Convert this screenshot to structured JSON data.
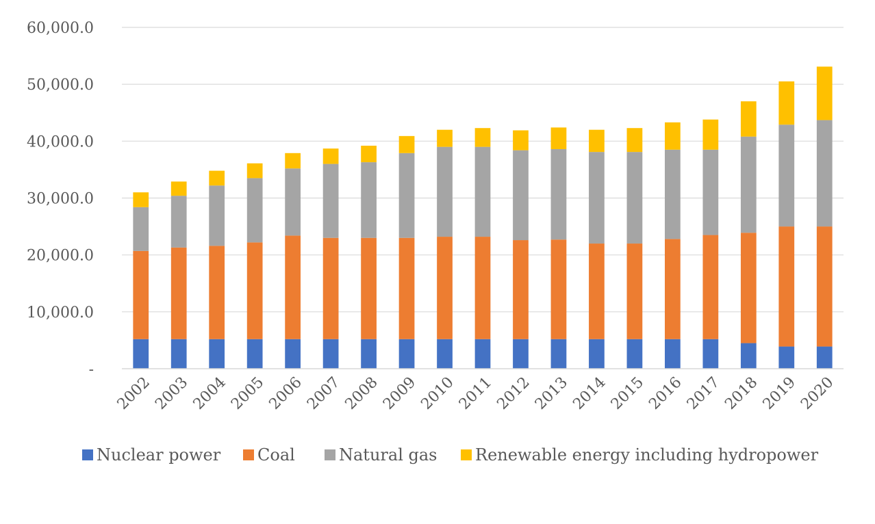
{
  "chart_data": {
    "type": "bar",
    "stacked": true,
    "title": "",
    "xlabel": "",
    "ylabel": "",
    "ylim": [
      0,
      60000
    ],
    "y_ticks": [
      0,
      10000,
      20000,
      30000,
      40000,
      50000,
      60000
    ],
    "y_tick_labels": [
      "-",
      "10,000.0",
      "20,000.0",
      "30,000.0",
      "40,000.0",
      "50,000.0",
      "60,000.0"
    ],
    "grid": true,
    "legend_position": "bottom",
    "categories": [
      "2002",
      "2003",
      "2004",
      "2005",
      "2006",
      "2007",
      "2008",
      "2009",
      "2010",
      "2011",
      "2012",
      "2013",
      "2014",
      "2015",
      "2016",
      "2017",
      "2018",
      "2019",
      "2020"
    ],
    "series": [
      {
        "name": "Nuclear power",
        "color": "#4472c4",
        "values": [
          5200,
          5200,
          5200,
          5200,
          5200,
          5200,
          5200,
          5200,
          5200,
          5200,
          5200,
          5200,
          5200,
          5200,
          5200,
          5200,
          4500,
          3900,
          3900
        ]
      },
      {
        "name": "Coal",
        "color": "#ed7d31",
        "values": [
          15500,
          16100,
          16400,
          17000,
          18200,
          17800,
          17800,
          17800,
          18000,
          18000,
          17400,
          17500,
          16800,
          16800,
          17600,
          18300,
          19400,
          21100,
          21100
        ]
      },
      {
        "name": "Natural gas",
        "color": "#a5a5a5",
        "values": [
          7700,
          9100,
          10600,
          11300,
          11800,
          13000,
          13300,
          14900,
          15800,
          15800,
          15800,
          15900,
          16100,
          16100,
          15700,
          15000,
          16900,
          17900,
          18700
        ]
      },
      {
        "name": "Renewable energy including hydropower",
        "color": "#ffc000",
        "values": [
          2600,
          2500,
          2600,
          2600,
          2700,
          2700,
          2900,
          3000,
          3000,
          3300,
          3500,
          3800,
          3900,
          4200,
          4800,
          5300,
          6200,
          7600,
          9400
        ]
      }
    ]
  }
}
